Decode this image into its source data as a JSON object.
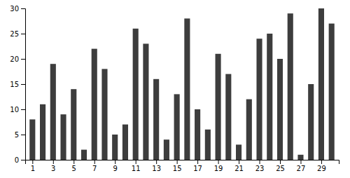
{
  "chart_data": {
    "type": "bar",
    "x": [
      1,
      2,
      3,
      4,
      5,
      6,
      7,
      8,
      9,
      10,
      11,
      12,
      13,
      14,
      15,
      16,
      17,
      18,
      19,
      20,
      21,
      22,
      23,
      24,
      25,
      26,
      27,
      28,
      29,
      30
    ],
    "values": [
      8,
      11,
      19,
      9,
      14,
      2,
      22,
      18,
      5,
      7,
      26,
      23,
      16,
      4,
      13,
      28,
      10,
      6,
      21,
      17,
      3,
      12,
      24,
      25,
      20,
      29,
      1,
      15,
      30,
      27
    ],
    "color": "#3d3d3d",
    "xlim": [
      0.3,
      30.7
    ],
    "ylim": [
      0,
      30
    ],
    "xticks": [
      1,
      3,
      5,
      7,
      9,
      11,
      13,
      15,
      17,
      19,
      21,
      23,
      25,
      27,
      29
    ],
    "yticks": [
      0,
      5,
      10,
      15,
      20,
      25,
      30
    ],
    "grid": false
  }
}
